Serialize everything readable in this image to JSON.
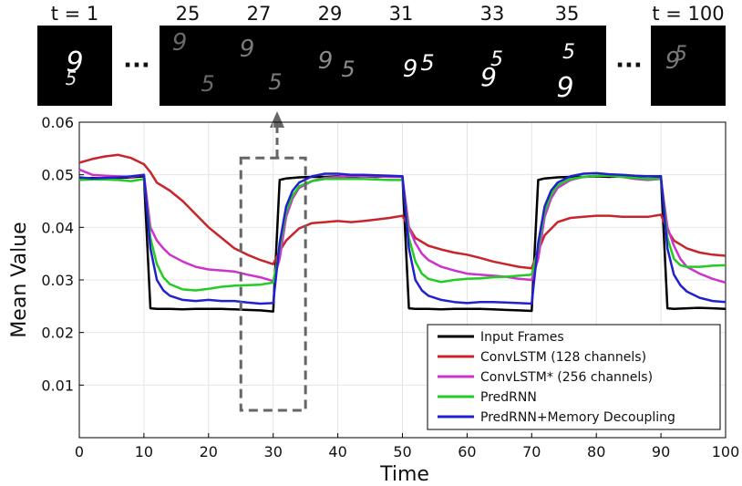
{
  "frames": {
    "labels": [
      "t = 1",
      "25",
      "27",
      "29",
      "31",
      "33",
      "35",
      "t = 100"
    ],
    "ellipsis": "···",
    "digits": [
      "9",
      "5"
    ]
  },
  "chart_data": {
    "type": "line",
    "title": "",
    "xlabel": "Time",
    "ylabel": "Mean Value",
    "xlim": [
      0,
      100
    ],
    "ylim": [
      0,
      0.06
    ],
    "xticks": [
      0,
      10,
      20,
      30,
      40,
      50,
      60,
      70,
      80,
      90,
      100
    ],
    "yticks": [
      0.01,
      0.02,
      0.03,
      0.04,
      0.05,
      0.06
    ],
    "ytick_labels": [
      "0.01",
      "0.02",
      "0.03",
      "0.04",
      "0.05",
      "0.06"
    ],
    "grid": true,
    "legend_position": "bottom-right",
    "highlight_box": {
      "x": [
        25,
        35
      ],
      "y": [
        0.0052,
        0.0532
      ]
    },
    "series": [
      {
        "name": "Input Frames",
        "color": "#000000",
        "x": [
          0,
          2,
          4,
          6,
          8,
          10,
          11,
          12,
          14,
          16,
          18,
          20,
          22,
          24,
          26,
          28,
          29,
          30,
          31,
          32,
          34,
          36,
          38,
          40,
          42,
          44,
          46,
          48,
          50,
          51,
          52,
          54,
          56,
          58,
          60,
          62,
          64,
          66,
          68,
          70,
          71,
          72,
          74,
          76,
          78,
          80,
          82,
          84,
          86,
          88,
          90,
          91,
          92,
          94,
          96,
          98,
          100
        ],
        "y": [
          0.0492,
          0.0494,
          0.0493,
          0.0494,
          0.0495,
          0.0497,
          0.0246,
          0.0245,
          0.0245,
          0.0244,
          0.0245,
          0.0245,
          0.0245,
          0.0244,
          0.0243,
          0.0242,
          0.0241,
          0.024,
          0.049,
          0.0493,
          0.0495,
          0.0496,
          0.0496,
          0.0497,
          0.0496,
          0.0497,
          0.0496,
          0.0497,
          0.0497,
          0.0246,
          0.0245,
          0.0245,
          0.0244,
          0.0245,
          0.0245,
          0.0245,
          0.0244,
          0.0243,
          0.0242,
          0.0241,
          0.049,
          0.0493,
          0.0495,
          0.0496,
          0.0496,
          0.0497,
          0.0496,
          0.0497,
          0.0496,
          0.0497,
          0.0497,
          0.0246,
          0.0245,
          0.0246,
          0.0247,
          0.0246,
          0.0245
        ]
      },
      {
        "name": "ConvLSTM (128 channels)",
        "color": "#c8242a",
        "x": [
          0,
          2,
          4,
          6,
          8,
          10,
          11,
          12,
          14,
          16,
          18,
          20,
          22,
          24,
          26,
          28,
          30,
          31,
          32,
          34,
          36,
          38,
          40,
          42,
          44,
          46,
          48,
          50,
          51,
          52,
          54,
          56,
          58,
          60,
          62,
          64,
          66,
          68,
          70,
          71,
          72,
          74,
          76,
          78,
          80,
          82,
          84,
          86,
          88,
          90,
          91,
          92,
          94,
          96,
          98,
          100
        ],
        "y": [
          0.0523,
          0.053,
          0.0535,
          0.0538,
          0.0532,
          0.052,
          0.0505,
          0.0485,
          0.047,
          0.045,
          0.0425,
          0.04,
          0.038,
          0.036,
          0.0348,
          0.0338,
          0.033,
          0.0355,
          0.0375,
          0.0398,
          0.0408,
          0.041,
          0.0412,
          0.041,
          0.0412,
          0.0415,
          0.0418,
          0.0422,
          0.04,
          0.038,
          0.0365,
          0.0358,
          0.0352,
          0.0348,
          0.0342,
          0.0335,
          0.033,
          0.0325,
          0.0322,
          0.0355,
          0.0385,
          0.041,
          0.0418,
          0.042,
          0.0422,
          0.0422,
          0.042,
          0.042,
          0.042,
          0.0424,
          0.0395,
          0.0375,
          0.036,
          0.0352,
          0.0348,
          0.0346
        ]
      },
      {
        "name": "ConvLSTM* (256 channels)",
        "color": "#cc33cc",
        "x": [
          0,
          1,
          2,
          4,
          6,
          8,
          10,
          11,
          12,
          13,
          14,
          16,
          18,
          20,
          22,
          24,
          26,
          28,
          30,
          31,
          32,
          33,
          34,
          36,
          38,
          40,
          42,
          44,
          46,
          48,
          50,
          51,
          52,
          53,
          54,
          56,
          58,
          60,
          62,
          64,
          66,
          68,
          70,
          71,
          72,
          73,
          74,
          76,
          78,
          80,
          82,
          84,
          86,
          88,
          90,
          91,
          92,
          93,
          94,
          96,
          98,
          100
        ],
        "y": [
          0.051,
          0.0505,
          0.05,
          0.0498,
          0.0497,
          0.0496,
          0.05,
          0.04,
          0.0375,
          0.036,
          0.0348,
          0.0335,
          0.0325,
          0.032,
          0.0318,
          0.0316,
          0.031,
          0.0305,
          0.0298,
          0.034,
          0.042,
          0.0455,
          0.0475,
          0.0488,
          0.0494,
          0.0496,
          0.0497,
          0.0497,
          0.0497,
          0.0496,
          0.0496,
          0.04,
          0.037,
          0.035,
          0.0338,
          0.0325,
          0.0318,
          0.0312,
          0.031,
          0.0308,
          0.0306,
          0.0302,
          0.03,
          0.034,
          0.042,
          0.0455,
          0.0475,
          0.049,
          0.0496,
          0.0498,
          0.0498,
          0.0496,
          0.0492,
          0.049,
          0.0492,
          0.04,
          0.0365,
          0.034,
          0.0325,
          0.0312,
          0.0302,
          0.0295
        ]
      },
      {
        "name": "PredRNN",
        "color": "#22cc22",
        "x": [
          0,
          2,
          4,
          6,
          8,
          10,
          11,
          12,
          13,
          14,
          16,
          18,
          20,
          22,
          24,
          26,
          28,
          30,
          31,
          32,
          33,
          34,
          36,
          38,
          40,
          42,
          44,
          46,
          48,
          50,
          51,
          52,
          53,
          54,
          56,
          58,
          60,
          62,
          64,
          66,
          68,
          70,
          71,
          72,
          73,
          74,
          76,
          78,
          80,
          82,
          84,
          86,
          88,
          90,
          91,
          92,
          93,
          94,
          96,
          98,
          100
        ],
        "y": [
          0.049,
          0.0491,
          0.0491,
          0.049,
          0.0488,
          0.0492,
          0.038,
          0.033,
          0.0305,
          0.0292,
          0.0282,
          0.028,
          0.0283,
          0.0287,
          0.0289,
          0.029,
          0.0291,
          0.0295,
          0.036,
          0.043,
          0.046,
          0.0478,
          0.0488,
          0.0492,
          0.0492,
          0.0492,
          0.0492,
          0.0491,
          0.049,
          0.049,
          0.038,
          0.0335,
          0.0312,
          0.0302,
          0.0296,
          0.03,
          0.0302,
          0.0303,
          0.0305,
          0.0306,
          0.0308,
          0.031,
          0.036,
          0.043,
          0.0462,
          0.048,
          0.0492,
          0.0496,
          0.0498,
          0.0498,
          0.0496,
          0.0494,
          0.0492,
          0.0493,
          0.038,
          0.034,
          0.0328,
          0.0325,
          0.0325,
          0.0327,
          0.0328
        ]
      },
      {
        "name": "PredRNN+Memory Decoupling",
        "color": "#2222cc",
        "x": [
          0,
          2,
          4,
          6,
          8,
          10,
          11,
          12,
          13,
          14,
          16,
          18,
          20,
          22,
          24,
          26,
          28,
          30,
          31,
          32,
          33,
          34,
          36,
          38,
          40,
          42,
          44,
          46,
          48,
          50,
          51,
          52,
          53,
          54,
          56,
          58,
          60,
          62,
          64,
          66,
          68,
          70,
          71,
          72,
          73,
          74,
          76,
          78,
          80,
          82,
          84,
          86,
          88,
          90,
          91,
          92,
          93,
          94,
          96,
          98,
          100
        ],
        "y": [
          0.0495,
          0.0493,
          0.0494,
          0.0495,
          0.0497,
          0.05,
          0.036,
          0.03,
          0.028,
          0.027,
          0.0262,
          0.026,
          0.0262,
          0.026,
          0.026,
          0.0257,
          0.0255,
          0.0256,
          0.037,
          0.044,
          0.047,
          0.0485,
          0.0497,
          0.0502,
          0.0502,
          0.05,
          0.05,
          0.0499,
          0.0498,
          0.0497,
          0.036,
          0.03,
          0.028,
          0.027,
          0.0262,
          0.0258,
          0.0256,
          0.0258,
          0.0258,
          0.0257,
          0.0256,
          0.0255,
          0.037,
          0.044,
          0.047,
          0.0485,
          0.0497,
          0.0502,
          0.0503,
          0.0501,
          0.05,
          0.0498,
          0.0497,
          0.0496,
          0.036,
          0.031,
          0.029,
          0.0278,
          0.0266,
          0.026,
          0.0258
        ]
      }
    ]
  }
}
